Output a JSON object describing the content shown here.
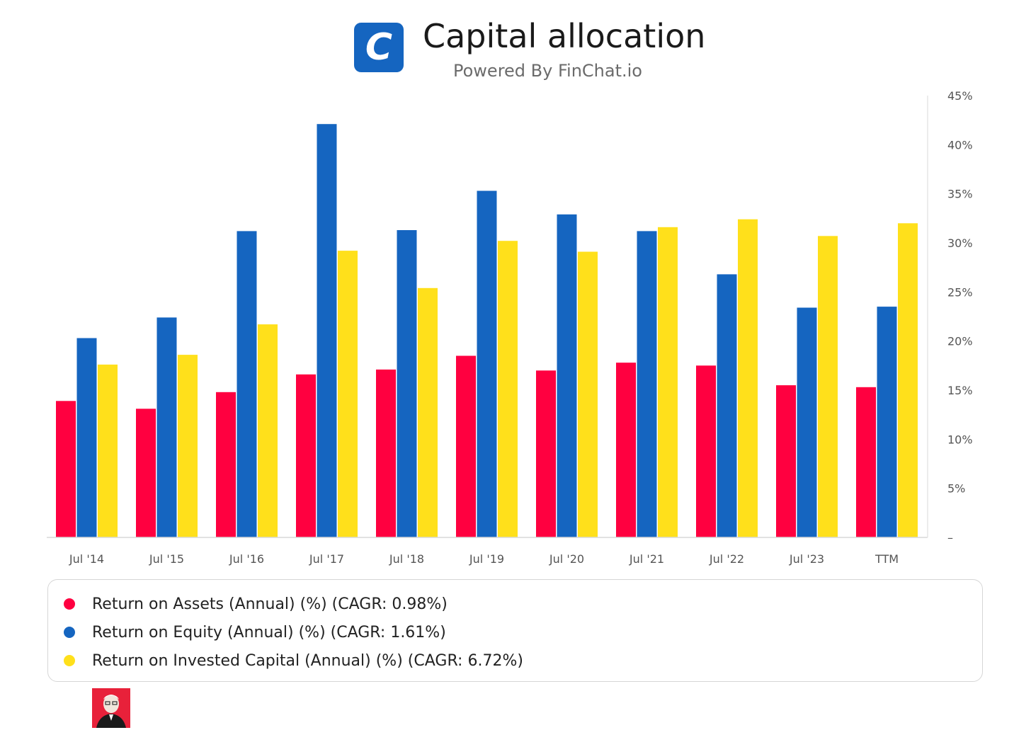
{
  "header": {
    "logo_letter": "C",
    "title": "Capital allocation",
    "subtitle": "Powered By FinChat.io"
  },
  "colors": {
    "roa": "#ff0040",
    "roe": "#1565c0",
    "roic": "#ffe01b",
    "logo_bg": "#1565c0",
    "avatar_bg": "#e8213a"
  },
  "chart_data": {
    "type": "bar",
    "categories": [
      "Jul '14",
      "Jul '15",
      "Jul '16",
      "Jul '17",
      "Jul '18",
      "Jul '19",
      "Jul '20",
      "Jul '21",
      "Jul '22",
      "Jul '23",
      "TTM"
    ],
    "series": [
      {
        "name": "Return on Assets (Annual) (%) (CAGR: 0.98%)",
        "values": [
          13.9,
          13.1,
          14.8,
          16.6,
          17.1,
          18.5,
          17.0,
          17.8,
          17.5,
          15.5,
          15.3
        ]
      },
      {
        "name": "Return on Equity (Annual) (%) (CAGR: 1.61%)",
        "values": [
          20.3,
          22.4,
          31.2,
          42.1,
          31.3,
          35.3,
          32.9,
          31.2,
          26.8,
          23.4,
          23.5
        ]
      },
      {
        "name": "Return on Invested Capital (Annual) (%) (CAGR: 6.72%)",
        "values": [
          17.6,
          18.6,
          21.7,
          29.2,
          25.4,
          30.2,
          29.1,
          31.6,
          32.4,
          30.7,
          32.0
        ]
      }
    ],
    "y_ticks": [
      "–",
      "5%",
      "10%",
      "15%",
      "20%",
      "25%",
      "30%",
      "35%",
      "40%",
      "45%"
    ],
    "ylim": [
      0,
      45
    ],
    "y_axis_position": "right",
    "grid": false,
    "legend_position": "bottom"
  },
  "legend": {
    "items": [
      {
        "label": "Return on Assets (Annual) (%) (CAGR: 0.98%)",
        "color": "#ff0040"
      },
      {
        "label": "Return on Equity (Annual) (%) (CAGR: 1.61%)",
        "color": "#1565c0"
      },
      {
        "label": "Return on Invested Capital (Annual) (%) (CAGR: 6.72%)",
        "color": "#ffe01b"
      }
    ]
  },
  "avatar": {
    "icon": "person-portrait-icon"
  }
}
